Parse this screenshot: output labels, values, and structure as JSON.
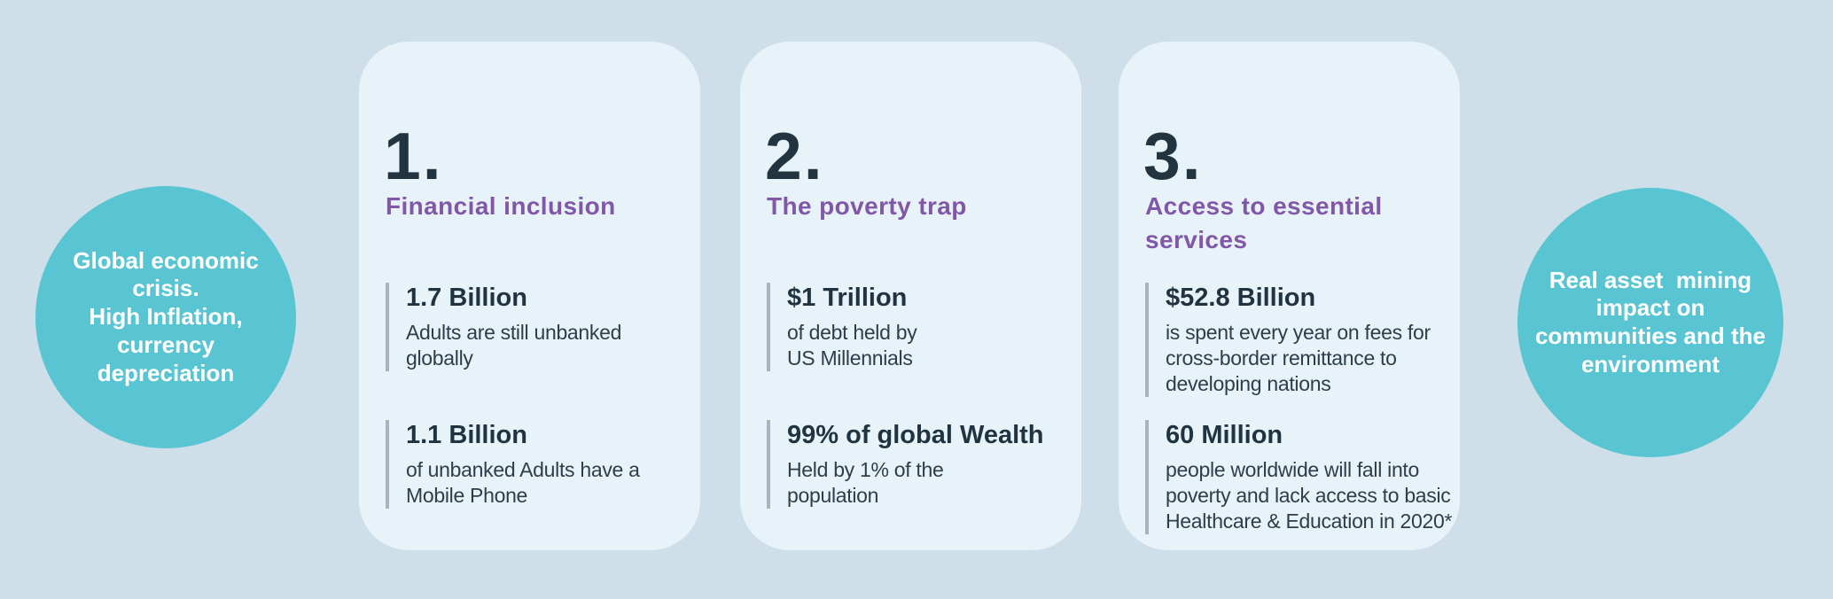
{
  "colors": {
    "page_background": "#cfdfe9",
    "card_background": "#e8f3f9",
    "circle_background": "#5ac5d2",
    "accent_purple": "#8157a8",
    "dark_text": "#1f3340",
    "stat_bar_gray": "#aab3ba",
    "circle_text_white": "#ffffff"
  },
  "left_circle": {
    "text": "Global economic\ncrisis.\nHigh Inflation,\ncurrency\ndepreciation"
  },
  "right_circle": {
    "text": "Real asset  mining\nimpact on\ncommunities and the\nenvironment"
  },
  "cards": [
    {
      "number": "1.",
      "title": "Financial inclusion",
      "stats": [
        {
          "value": "1.7 Billion",
          "description": "Adults are still unbanked\nglobally"
        },
        {
          "value": "1.1 Billion",
          "description": "of unbanked Adults have a\nMobile Phone"
        }
      ]
    },
    {
      "number": "2.",
      "title": "The poverty trap",
      "stats": [
        {
          "value": "$1 Trillion",
          "description": "of debt held by\nUS Millennials"
        },
        {
          "value": "99% of global Wealth",
          "description": "Held by 1% of the\npopulation"
        }
      ]
    },
    {
      "number": "3.",
      "title": "Access to essential\nservices",
      "stats": [
        {
          "value": "$52.8 Billion",
          "description": "is spent every year on fees for\ncross-border remittance to\ndeveloping nations"
        },
        {
          "value": "60 Million",
          "description": "people worldwide will fall into\npoverty and lack access to basic\nHealthcare & Education in 2020*"
        }
      ]
    }
  ]
}
